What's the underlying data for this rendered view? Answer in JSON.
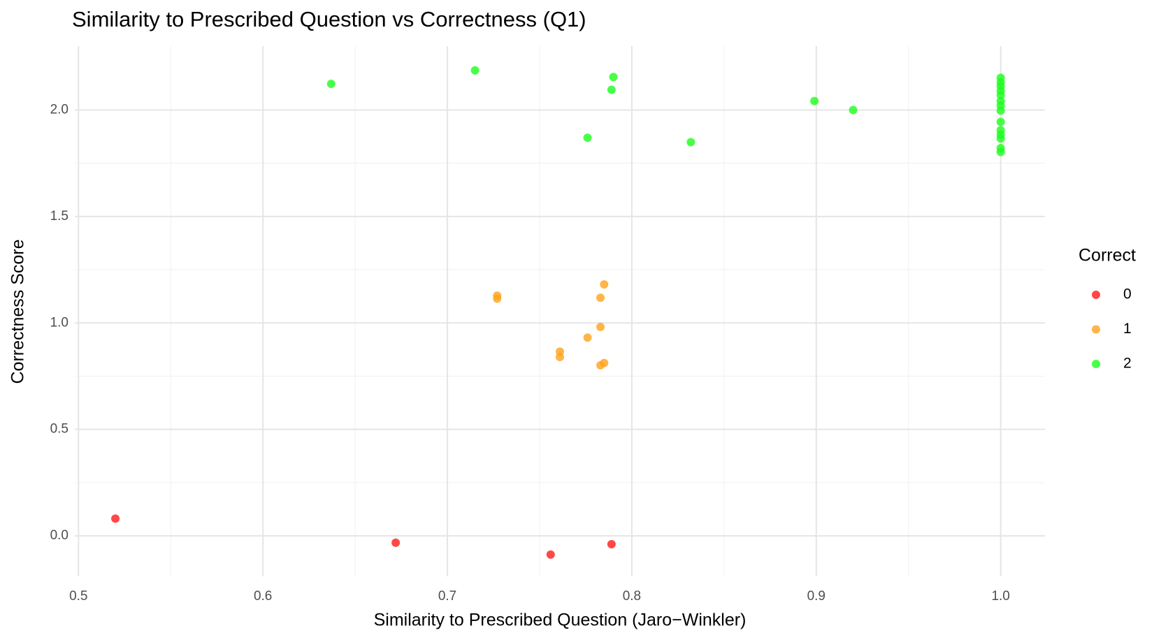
{
  "chart_data": {
    "type": "scatter",
    "title": "Similarity to Prescribed Question vs Correctness (Q1)",
    "x_label": "Similarity to Prescribed Question (Jaro−Winkler)",
    "y_label": "Correctness Score",
    "legend_title": "Correct",
    "xlim": [
      0.498,
      1.024
    ],
    "ylim": [
      -0.19,
      2.3
    ],
    "xticks": [
      {
        "value": 0.5,
        "label": "0.5"
      },
      0.6,
      0.7,
      0.8,
      0.9,
      {
        "value": 1.0,
        "label": "1.0"
      }
    ],
    "yticks": [
      {
        "value": 0.0,
        "label": "0.0"
      },
      0.5,
      {
        "value": 1.0,
        "label": "1.0"
      },
      1.5,
      {
        "value": 2.0,
        "label": "2.0"
      }
    ],
    "xminorticks": [
      0.55,
      0.65,
      0.75,
      0.85,
      0.95
    ],
    "yminorticks": [
      0.25,
      0.75,
      1.25,
      1.75
    ],
    "grid": true,
    "legend": "right",
    "series": [
      {
        "name": "0",
        "color": "#ff1a1a",
        "x": [
          0.52,
          0.672,
          0.756,
          0.789
        ],
        "y": [
          0.081,
          -0.032,
          -0.088,
          -0.039
        ]
      },
      {
        "name": "1",
        "color": "#ffa31a",
        "x": [
          0.727,
          0.727,
          0.785,
          0.783,
          0.783,
          0.776,
          0.761,
          0.761,
          0.783,
          0.785
        ],
        "y": [
          1.128,
          1.114,
          1.181,
          1.118,
          0.981,
          0.931,
          0.865,
          0.84,
          0.801,
          0.812
        ]
      },
      {
        "name": "2",
        "color": "#1aff1a",
        "x": [
          0.637,
          0.715,
          0.79,
          0.789,
          0.776,
          0.832,
          0.899,
          0.92,
          1.0,
          1.0,
          1.0,
          1.0,
          1.0,
          1.0,
          1.0,
          1.0,
          1.0,
          1.0,
          1.0,
          1.0,
          1.0,
          1.0
        ],
        "y": [
          2.123,
          2.186,
          2.155,
          2.095,
          1.87,
          1.849,
          2.042,
          2.0,
          2.151,
          2.13,
          2.112,
          2.091,
          2.07,
          2.042,
          2.021,
          1.997,
          1.944,
          1.905,
          1.884,
          1.866,
          1.821,
          1.803
        ]
      }
    ]
  }
}
